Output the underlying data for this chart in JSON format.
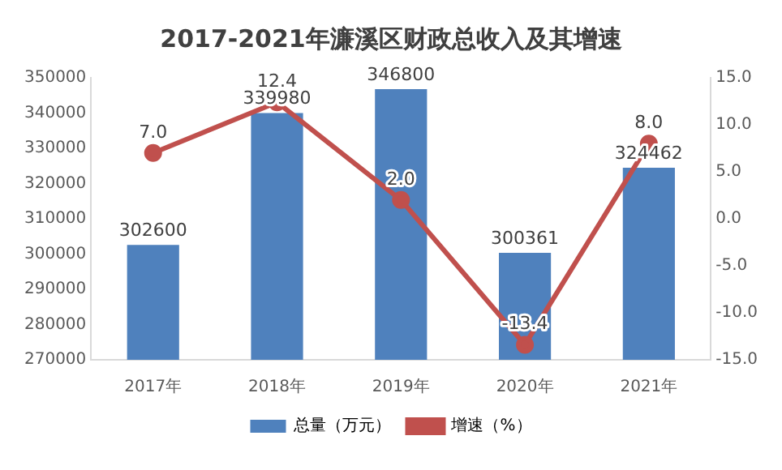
{
  "chart_data": {
    "type": "bar",
    "title": "2017-2021年濂溪区财政总收入及其增速",
    "categories": [
      "2017年",
      "2018年",
      "2019年",
      "2020年",
      "2021年"
    ],
    "series": [
      {
        "name": "总量（万元）",
        "color": "#4f81bd",
        "values": [
          302600,
          339980,
          346800,
          300361,
          324462
        ],
        "value_labels": [
          "302600",
          "339980",
          "346800",
          "300361",
          "324462"
        ]
      },
      {
        "name": "增速（%）",
        "type": "line",
        "axis": "y2",
        "color": "#c0504d",
        "values": [
          7.0,
          12.4,
          2.0,
          -13.4,
          8.0
        ],
        "value_labels": [
          "7.0",
          "12.4",
          "2.0",
          "-13.4",
          "8.0"
        ],
        "marker": "circle"
      }
    ],
    "ylim": [
      270000,
      350000
    ],
    "yticks": [
      270000,
      280000,
      290000,
      300000,
      310000,
      320000,
      330000,
      340000,
      350000
    ],
    "y2lim": [
      -15,
      15
    ],
    "y2ticks": [
      {
        "value": -15,
        "label": "-15.0"
      },
      {
        "value": -10,
        "label": "-10.0"
      },
      {
        "value": -5,
        "label": "-5.0"
      },
      {
        "value": 0,
        "label": "0.0"
      },
      {
        "value": 5,
        "label": "5.0"
      },
      {
        "value": 10,
        "label": "10.0"
      },
      {
        "value": 15,
        "label": "15.0"
      }
    ],
    "legend": "bottom"
  }
}
